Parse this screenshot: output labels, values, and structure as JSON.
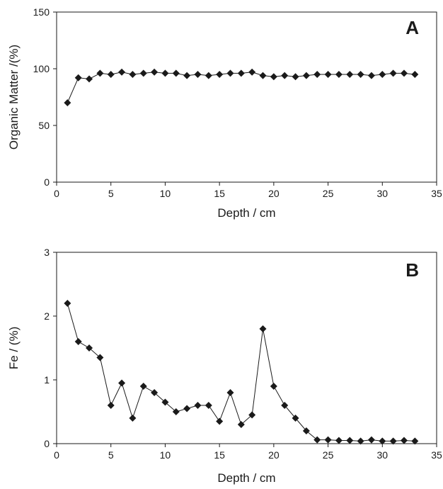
{
  "chart_data": [
    {
      "type": "line",
      "panel_label": "A",
      "xlabel": "Depth / cm",
      "ylabel": "Organic Matter /(%)",
      "xlim": [
        0,
        35
      ],
      "ylim": [
        0,
        150
      ],
      "x_ticks": [
        "0",
        "5",
        "10",
        "15",
        "20",
        "25",
        "30",
        "35"
      ],
      "y_ticks": [
        "0",
        "50",
        "100",
        "150"
      ],
      "grid": false,
      "marker": "diamond",
      "series": [
        {
          "x": [
            1,
            2,
            3,
            4,
            5,
            6,
            7,
            8,
            9,
            10,
            11,
            12,
            13,
            14,
            15,
            16,
            17,
            18,
            19,
            20,
            21,
            22,
            23,
            24,
            25,
            26,
            27,
            28,
            29,
            30,
            31,
            32,
            33
          ],
          "y": [
            70,
            92,
            91,
            96,
            95,
            97,
            95,
            96,
            97,
            96,
            96,
            94,
            95,
            94,
            95,
            96,
            96,
            97,
            94,
            93,
            94,
            93,
            94,
            95,
            95,
            95,
            95,
            95,
            94,
            95,
            96,
            96,
            95
          ]
        }
      ]
    },
    {
      "type": "line",
      "panel_label": "B",
      "xlabel": "Depth / cm",
      "ylabel": "Fe / (%)",
      "xlim": [
        0,
        35
      ],
      "ylim": [
        0,
        3
      ],
      "x_ticks": [
        "0",
        "5",
        "10",
        "15",
        "20",
        "25",
        "30",
        "35"
      ],
      "y_ticks": [
        "0",
        "1",
        "2",
        "3"
      ],
      "grid": false,
      "marker": "diamond",
      "series": [
        {
          "x": [
            1,
            2,
            3,
            4,
            5,
            6,
            7,
            8,
            9,
            10,
            11,
            12,
            13,
            14,
            15,
            16,
            17,
            18,
            19,
            20,
            21,
            22,
            23,
            24,
            25,
            26,
            27,
            28,
            29,
            30,
            31,
            32,
            33
          ],
          "y": [
            2.2,
            1.6,
            1.5,
            1.35,
            0.6,
            0.95,
            0.4,
            0.9,
            0.8,
            0.65,
            0.5,
            0.55,
            0.6,
            0.6,
            0.35,
            0.8,
            0.3,
            0.45,
            1.8,
            0.9,
            0.6,
            0.4,
            0.2,
            0.06,
            0.06,
            0.05,
            0.05,
            0.04,
            0.06,
            0.04,
            0.04,
            0.05,
            0.04
          ]
        }
      ]
    }
  ]
}
